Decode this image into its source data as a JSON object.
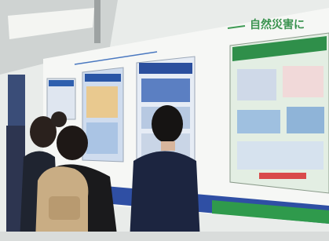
{
  "booth": {
    "heading": "自然災害に"
  }
}
